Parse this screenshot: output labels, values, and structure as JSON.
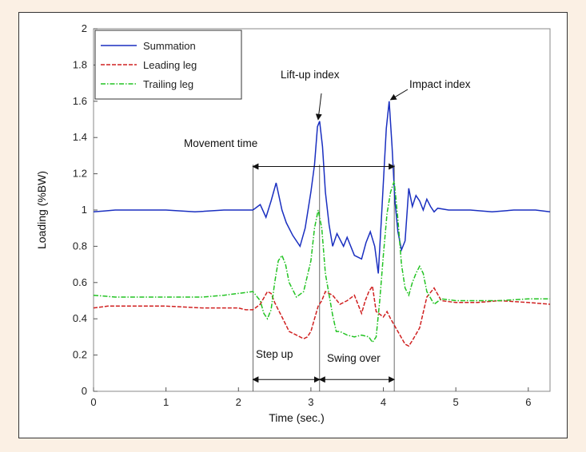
{
  "chart_data": {
    "type": "line",
    "xlabel": "Time (sec.)",
    "ylabel": "Loading (%BW)",
    "xlim": [
      0,
      6.3
    ],
    "ylim": [
      0,
      2
    ],
    "x_ticks": [
      "0",
      "1",
      "2",
      "3",
      "4",
      "5",
      "6"
    ],
    "y_ticks": [
      "0",
      "0.2",
      "0.4",
      "0.6",
      "0.8",
      "1",
      "1.2",
      "1.4",
      "1.6",
      "1.8",
      "2"
    ],
    "legend_position": "top-left",
    "series": [
      {
        "name": "Summation",
        "color": "#1a2fc0",
        "style": "solid",
        "x": [
          0,
          0.3,
          0.6,
          1.0,
          1.4,
          1.8,
          2.0,
          2.2,
          2.3,
          2.38,
          2.45,
          2.52,
          2.6,
          2.66,
          2.75,
          2.85,
          2.92,
          3.0,
          3.05,
          3.09,
          3.12,
          3.16,
          3.2,
          3.25,
          3.3,
          3.36,
          3.45,
          3.5,
          3.6,
          3.7,
          3.76,
          3.82,
          3.88,
          3.93,
          3.97,
          4.0,
          4.04,
          4.08,
          4.12,
          4.16,
          4.2,
          4.25,
          4.3,
          4.35,
          4.4,
          4.45,
          4.5,
          4.55,
          4.6,
          4.65,
          4.7,
          4.75,
          4.9,
          5.2,
          5.5,
          5.8,
          6.1,
          6.3
        ],
        "y": [
          0.99,
          1.0,
          1.0,
          1.0,
          0.99,
          1.0,
          1.0,
          1.0,
          1.03,
          0.96,
          1.05,
          1.15,
          1.0,
          0.93,
          0.86,
          0.8,
          0.9,
          1.1,
          1.25,
          1.46,
          1.49,
          1.35,
          1.1,
          0.92,
          0.8,
          0.87,
          0.8,
          0.85,
          0.75,
          0.73,
          0.82,
          0.88,
          0.8,
          0.65,
          0.93,
          1.15,
          1.45,
          1.6,
          1.35,
          1.05,
          0.88,
          0.78,
          0.83,
          1.12,
          1.02,
          1.08,
          1.05,
          1.0,
          1.06,
          1.02,
          0.99,
          1.01,
          1.0,
          1.0,
          0.99,
          1.0,
          1.0,
          0.99
        ]
      },
      {
        "name": "Leading leg",
        "color": "#d02020",
        "style": "dashed",
        "x": [
          0,
          0.2,
          0.5,
          1.0,
          1.5,
          1.8,
          2.0,
          2.1,
          2.2,
          2.3,
          2.4,
          2.45,
          2.5,
          2.55,
          2.6,
          2.65,
          2.7,
          2.8,
          2.9,
          2.95,
          3.0,
          3.05,
          3.1,
          3.15,
          3.2,
          3.3,
          3.4,
          3.5,
          3.6,
          3.7,
          3.75,
          3.8,
          3.85,
          3.9,
          4.0,
          4.05,
          4.1,
          4.2,
          4.3,
          4.35,
          4.4,
          4.5,
          4.6,
          4.7,
          4.8,
          5.0,
          5.3,
          5.6,
          6.0,
          6.3
        ],
        "y": [
          0.46,
          0.47,
          0.47,
          0.47,
          0.46,
          0.46,
          0.46,
          0.45,
          0.45,
          0.48,
          0.55,
          0.54,
          0.49,
          0.45,
          0.41,
          0.37,
          0.33,
          0.31,
          0.29,
          0.3,
          0.33,
          0.4,
          0.47,
          0.5,
          0.55,
          0.53,
          0.48,
          0.5,
          0.53,
          0.43,
          0.5,
          0.55,
          0.58,
          0.44,
          0.41,
          0.44,
          0.4,
          0.33,
          0.26,
          0.25,
          0.28,
          0.35,
          0.52,
          0.57,
          0.5,
          0.49,
          0.49,
          0.5,
          0.49,
          0.48
        ]
      },
      {
        "name": "Trailing leg",
        "color": "#22c322",
        "style": "dashdot",
        "x": [
          0,
          0.3,
          0.6,
          1.0,
          1.5,
          1.8,
          2.0,
          2.2,
          2.3,
          2.35,
          2.4,
          2.45,
          2.5,
          2.55,
          2.6,
          2.65,
          2.7,
          2.8,
          2.9,
          3.0,
          3.05,
          3.1,
          3.15,
          3.2,
          3.3,
          3.35,
          3.4,
          3.5,
          3.6,
          3.7,
          3.8,
          3.85,
          3.9,
          3.95,
          4.0,
          4.05,
          4.1,
          4.15,
          4.2,
          4.25,
          4.3,
          4.35,
          4.4,
          4.45,
          4.5,
          4.55,
          4.6,
          4.7,
          4.8,
          5.0,
          5.3,
          5.6,
          6.0,
          6.3
        ],
        "y": [
          0.53,
          0.52,
          0.52,
          0.52,
          0.52,
          0.53,
          0.54,
          0.55,
          0.5,
          0.43,
          0.4,
          0.45,
          0.6,
          0.72,
          0.75,
          0.7,
          0.6,
          0.52,
          0.55,
          0.72,
          0.9,
          1.0,
          0.9,
          0.65,
          0.42,
          0.33,
          0.33,
          0.31,
          0.3,
          0.31,
          0.3,
          0.27,
          0.3,
          0.5,
          0.75,
          0.98,
          1.1,
          1.16,
          0.95,
          0.7,
          0.57,
          0.53,
          0.6,
          0.65,
          0.69,
          0.65,
          0.55,
          0.48,
          0.51,
          0.5,
          0.5,
          0.5,
          0.51,
          0.51
        ]
      }
    ],
    "annotations": {
      "lift_up_index": "Lift-up index",
      "impact_index": "Impact index",
      "movement_time": "Movement time",
      "step_up": "Step up",
      "swing_over": "Swing over"
    }
  }
}
